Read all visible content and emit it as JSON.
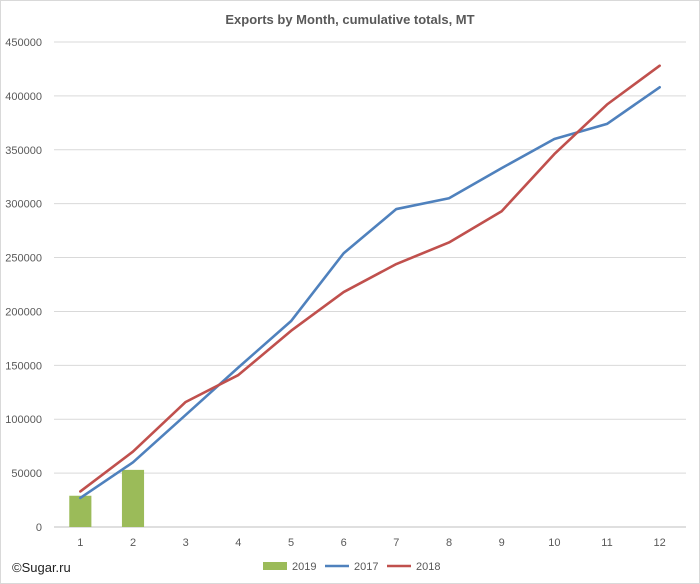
{
  "credit": "©Sugar.ru",
  "chart_data": {
    "type": "line",
    "title": "Exports by Month, cumulative totals, MT",
    "xlabel": "",
    "ylabel": "",
    "categories": [
      "1",
      "2",
      "3",
      "4",
      "5",
      "6",
      "7",
      "8",
      "9",
      "10",
      "11",
      "12"
    ],
    "ylim": [
      0,
      450000
    ],
    "yticks": [
      0,
      50000,
      100000,
      150000,
      200000,
      250000,
      300000,
      350000,
      400000,
      450000
    ],
    "ytick_labels": [
      "0",
      "50000",
      "100000",
      "150000",
      "200000",
      "250000",
      "300000",
      "350000",
      "400000",
      "450000"
    ],
    "grid": true,
    "legend_position": "bottom",
    "series": [
      {
        "name": "2019",
        "type": "bar",
        "color": "#9bbb59",
        "values": [
          29000,
          53000,
          null,
          null,
          null,
          null,
          null,
          null,
          null,
          null,
          null,
          null
        ]
      },
      {
        "name": "2017",
        "type": "line",
        "color": "#4f81bd",
        "values": [
          27000,
          60000,
          104000,
          148000,
          191000,
          254000,
          295000,
          305000,
          333000,
          360000,
          374000,
          408000
        ]
      },
      {
        "name": "2018",
        "type": "line",
        "color": "#c0504d",
        "values": [
          33000,
          70000,
          116000,
          141000,
          182000,
          218000,
          244000,
          264000,
          293000,
          346000,
          392000,
          428000
        ]
      }
    ]
  }
}
